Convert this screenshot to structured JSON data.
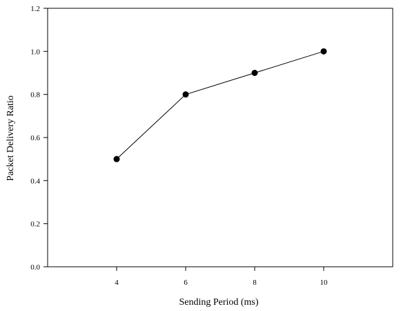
{
  "chart_data": {
    "type": "line",
    "title": "",
    "xlabel": "Sending Period (ms)",
    "ylabel": "Packet Delivery Ratio",
    "xlim": [
      2,
      12
    ],
    "ylim": [
      0.0,
      1.2
    ],
    "xticks": [
      4,
      6,
      8,
      10
    ],
    "xtick_labels": [
      "4",
      "6",
      "8",
      "10"
    ],
    "yticks": [
      0.0,
      0.2,
      0.4,
      0.6,
      0.8,
      1.0,
      1.2
    ],
    "ytick_labels": [
      "0.0",
      "0.2",
      "0.4",
      "0.6",
      "0.8",
      "1.0",
      "1.2"
    ],
    "grid": false,
    "legend": "none",
    "series": [
      {
        "x": [
          4,
          6,
          8,
          10
        ],
        "y": [
          0.5,
          0.8,
          0.9,
          1.0
        ],
        "color": "#000000",
        "marker": "circle"
      }
    ]
  }
}
